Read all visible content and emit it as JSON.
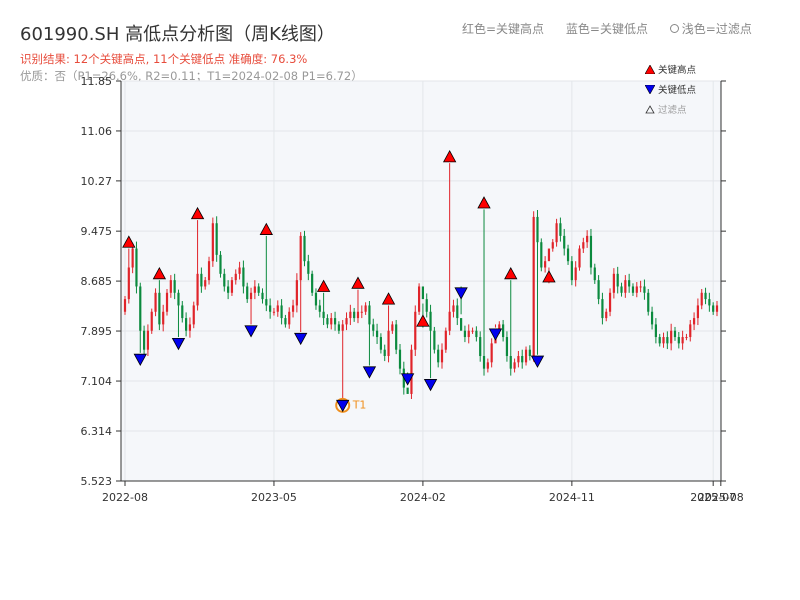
{
  "header": {
    "title": "601990.SH 高低点分析图（周K线图）",
    "result_line": "识别结果: 12个关键高点, 11个关键低点  准确度: 76.3%",
    "quality_line": "优质：否（P1=26.6%, R2=0.11；T1=2024-02-08 P1=6.72）"
  },
  "top_legend": {
    "red_label": "红色=关键高点",
    "blue_label": "蓝色=关键低点",
    "light_label": "浅色=过滤点"
  },
  "colors": {
    "up": "#e0242a",
    "down": "#0b8a3e",
    "high_marker": "#ff0000",
    "low_marker": "#0000ee",
    "t1_ring": "#f0901e",
    "plot_bg": "#f5f7fa",
    "grid": "#e3e6ea"
  },
  "chart_data": {
    "type": "candlestick",
    "x_axis": {
      "ticks": [
        "2022-08",
        "2023-05",
        "2024-02",
        "2024-11",
        "2025-07",
        "2025-08"
      ],
      "tick_weeks": [
        0,
        39,
        78,
        117,
        154,
        156
      ]
    },
    "y_axis": {
      "ticks": [
        5.523,
        6.314,
        7.104,
        7.895,
        8.685,
        9.475,
        10.27,
        11.06,
        11.85
      ],
      "range": [
        5.523,
        11.85
      ]
    },
    "closes": [
      8.4,
      8.9,
      9.2,
      8.6,
      7.9,
      7.6,
      7.9,
      8.2,
      8.5,
      8.0,
      8.2,
      8.5,
      8.7,
      8.5,
      8.3,
      8.1,
      7.9,
      8.0,
      8.3,
      8.8,
      8.6,
      8.7,
      9.0,
      9.6,
      9.1,
      8.8,
      8.6,
      8.5,
      8.7,
      8.8,
      8.9,
      8.6,
      8.4,
      8.5,
      8.6,
      8.5,
      8.4,
      8.3,
      8.2,
      8.2,
      8.3,
      8.1,
      8.0,
      8.2,
      8.3,
      8.7,
      9.4,
      9.0,
      8.8,
      8.5,
      8.3,
      8.2,
      8.1,
      8.0,
      8.1,
      8.0,
      7.9,
      8.0,
      8.1,
      8.2,
      8.1,
      8.2,
      8.2,
      8.3,
      8.0,
      7.9,
      7.8,
      7.6,
      7.5,
      7.9,
      8.0,
      7.6,
      7.3,
      7.0,
      6.9,
      7.6,
      8.2,
      8.6,
      8.4,
      8.2,
      7.9,
      7.6,
      7.4,
      7.6,
      7.9,
      8.2,
      8.3,
      8.1,
      7.9,
      7.8,
      7.9,
      7.9,
      7.8,
      7.5,
      7.3,
      7.4,
      7.7,
      7.9,
      8.0,
      7.8,
      7.5,
      7.3,
      7.4,
      7.5,
      7.4,
      7.6,
      7.5,
      9.7,
      9.3,
      8.9,
      9.0,
      9.2,
      9.3,
      9.6,
      9.4,
      9.2,
      9.0,
      8.7,
      8.9,
      9.2,
      9.3,
      9.4,
      8.9,
      8.7,
      8.4,
      8.1,
      8.2,
      8.5,
      8.8,
      8.6,
      8.5,
      8.7,
      8.6,
      8.5,
      8.6,
      8.6,
      8.5,
      8.2,
      8.0,
      7.8,
      7.7,
      7.8,
      7.7,
      7.9,
      7.8,
      7.7,
      7.8,
      7.8,
      8.0,
      8.1,
      8.3,
      8.5,
      8.4,
      8.3,
      8.2,
      8.3
    ],
    "key_highs": [
      {
        "week": 1,
        "value": 9.3
      },
      {
        "week": 9,
        "value": 8.8
      },
      {
        "week": 19,
        "value": 9.75
      },
      {
        "week": 37,
        "value": 9.5
      },
      {
        "week": 52,
        "value": 8.6
      },
      {
        "week": 61,
        "value": 8.65
      },
      {
        "week": 69,
        "value": 8.4
      },
      {
        "week": 78,
        "value": 8.05
      },
      {
        "week": 85,
        "value": 10.65
      },
      {
        "week": 94,
        "value": 9.92
      },
      {
        "week": 101,
        "value": 8.8
      },
      {
        "week": 111,
        "value": 8.75
      }
    ],
    "key_lows": [
      {
        "week": 4,
        "value": 7.45
      },
      {
        "week": 14,
        "value": 7.7
      },
      {
        "week": 33,
        "value": 7.9
      },
      {
        "week": 46,
        "value": 7.78
      },
      {
        "week": 57,
        "value": 6.72,
        "label": "T1"
      },
      {
        "week": 64,
        "value": 7.25
      },
      {
        "week": 74,
        "value": 7.14
      },
      {
        "week": 80,
        "value": 7.05
      },
      {
        "week": 88,
        "value": 8.5
      },
      {
        "week": 97,
        "value": 7.85
      },
      {
        "week": 108,
        "value": 7.42
      }
    ]
  },
  "plot_legend": {
    "high": "关键高点",
    "low": "关键低点",
    "filtered": "过滤点"
  }
}
